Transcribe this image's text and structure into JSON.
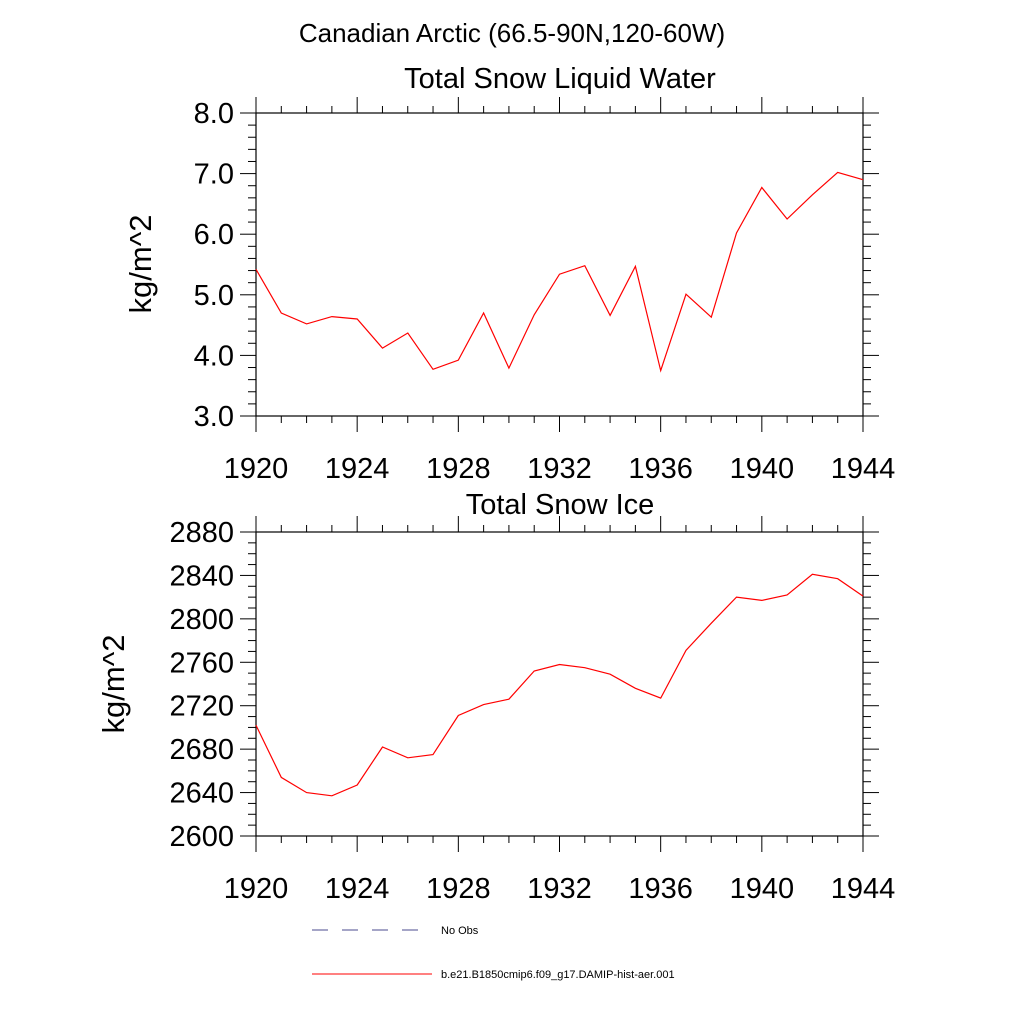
{
  "figure": {
    "title": "Canadian Arctic (66.5-90N,120-60W)"
  },
  "chart_data": [
    {
      "type": "line",
      "title": "Total Snow Liquid Water",
      "xlabel": "",
      "ylabel": "kg/m^2",
      "xlim": [
        1920,
        1944
      ],
      "ylim": [
        3.0,
        8.0
      ],
      "xticks": [
        "1920",
        "1924",
        "1928",
        "1932",
        "1936",
        "1940",
        "1944"
      ],
      "yticks": [
        "3.0",
        "4.0",
        "5.0",
        "6.0",
        "7.0",
        "8.0"
      ],
      "x": [
        1920,
        1921,
        1922,
        1923,
        1924,
        1925,
        1926,
        1927,
        1928,
        1929,
        1930,
        1931,
        1932,
        1933,
        1934,
        1935,
        1936,
        1937,
        1938,
        1939,
        1940,
        1941,
        1942,
        1943,
        1944
      ],
      "series": [
        {
          "name": "b.e21.B1850cmip6.f09_g17.DAMIP-hist-aer.001",
          "color": "#ff0000",
          "values": [
            5.42,
            4.7,
            4.52,
            4.64,
            4.6,
            4.12,
            4.37,
            3.77,
            3.92,
            4.7,
            3.79,
            4.67,
            5.34,
            5.48,
            4.66,
            5.47,
            3.75,
            5.01,
            4.63,
            6.02,
            6.77,
            6.25,
            6.65,
            7.02,
            6.9
          ]
        }
      ],
      "grid": false
    },
    {
      "type": "line",
      "title": "Total Snow Ice",
      "xlabel": "",
      "ylabel": "kg/m^2",
      "xlim": [
        1920,
        1944
      ],
      "ylim": [
        2600,
        2880
      ],
      "xticks": [
        "1920",
        "1924",
        "1928",
        "1932",
        "1936",
        "1940",
        "1944"
      ],
      "yticks": [
        "2600",
        "2640",
        "2680",
        "2720",
        "2760",
        "2800",
        "2840",
        "2880"
      ],
      "x": [
        1920,
        1921,
        1922,
        1923,
        1924,
        1925,
        1926,
        1927,
        1928,
        1929,
        1930,
        1931,
        1932,
        1933,
        1934,
        1935,
        1936,
        1937,
        1938,
        1939,
        1940,
        1941,
        1942,
        1943,
        1944
      ],
      "series": [
        {
          "name": "b.e21.B1850cmip6.f09_g17.DAMIP-hist-aer.001",
          "color": "#ff0000",
          "values": [
            2702,
            2654,
            2640,
            2637,
            2647,
            2682,
            2672,
            2675,
            2711,
            2721,
            2726,
            2752,
            2758,
            2755,
            2749,
            2736,
            2727,
            2771,
            2796,
            2820,
            2817,
            2822,
            2841,
            2837,
            2821
          ]
        }
      ],
      "grid": false
    }
  ],
  "legend": {
    "items": [
      {
        "label": "No Obs",
        "color": "#4b4b8f",
        "style": "dashed"
      },
      {
        "label": "b.e21.B1850cmip6.f09_g17.DAMIP-hist-aer.001",
        "color": "#ff0000",
        "style": "solid"
      }
    ]
  }
}
